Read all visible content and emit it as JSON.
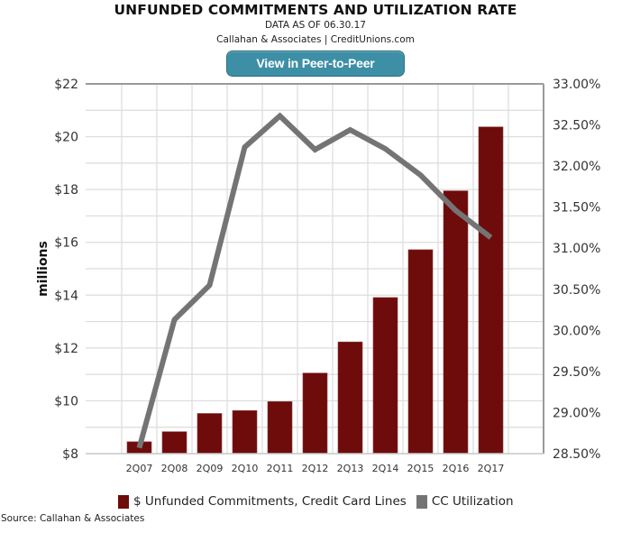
{
  "header": {
    "title": "UNFUNDED COMMITMENTS AND UTILIZATION RATE",
    "data_as_of": "DATA AS OF 06.30.17",
    "attribution": "Callahan & Associates | CreditUnions.com",
    "button_label": "View in Peer-to-Peer"
  },
  "footer": {
    "source": "Source: Callahan & Associates"
  },
  "colors": {
    "bar": "#6e0b0b",
    "line": "#747474",
    "button": "#3d8fa6",
    "grid": "#dcdcdc",
    "axis": "#999999"
  },
  "chart_data": {
    "type": "bar+line",
    "title": "UNFUNDED COMMITMENTS AND UTILIZATION RATE",
    "categories": [
      "2Q07",
      "2Q08",
      "2Q09",
      "2Q10",
      "2Q11",
      "2Q12",
      "2Q13",
      "2Q14",
      "2Q15",
      "2Q16",
      "2Q17"
    ],
    "series": [
      {
        "name": "$ Unfunded Commitments, Credit Card Lines",
        "type": "bar",
        "axis": "left",
        "values": [
          8.45,
          8.83,
          9.52,
          9.63,
          9.97,
          11.05,
          12.23,
          13.91,
          15.72,
          17.95,
          20.37
        ]
      },
      {
        "name": "CC Utilization",
        "type": "line",
        "axis": "right",
        "values": [
          28.57,
          30.13,
          30.55,
          32.23,
          32.61,
          32.2,
          32.44,
          32.21,
          31.89,
          31.46,
          31.13
        ]
      }
    ],
    "left_axis": {
      "label": "millions",
      "ylim": [
        8,
        22
      ],
      "ticks": [
        8,
        10,
        12,
        14,
        16,
        18,
        20,
        22
      ],
      "tick_labels": [
        "$8",
        "$10",
        "$12",
        "$14",
        "$16",
        "$18",
        "$20",
        "$22"
      ],
      "minor_step": 1
    },
    "right_axis": {
      "label": "",
      "ylim": [
        28.5,
        33.0
      ],
      "ticks": [
        28.5,
        29.0,
        29.5,
        30.0,
        30.5,
        31.0,
        31.5,
        32.0,
        32.5,
        33.0
      ],
      "tick_labels": [
        "28.50%",
        "29.00%",
        "29.50%",
        "30.00%",
        "30.50%",
        "31.00%",
        "31.50%",
        "32.00%",
        "32.50%",
        "33.00%"
      ]
    },
    "xlabel": "",
    "grid": true,
    "legend": {
      "position": "bottom",
      "entries": [
        "$ Unfunded Commitments, Credit Card Lines",
        "CC Utilization"
      ]
    }
  }
}
